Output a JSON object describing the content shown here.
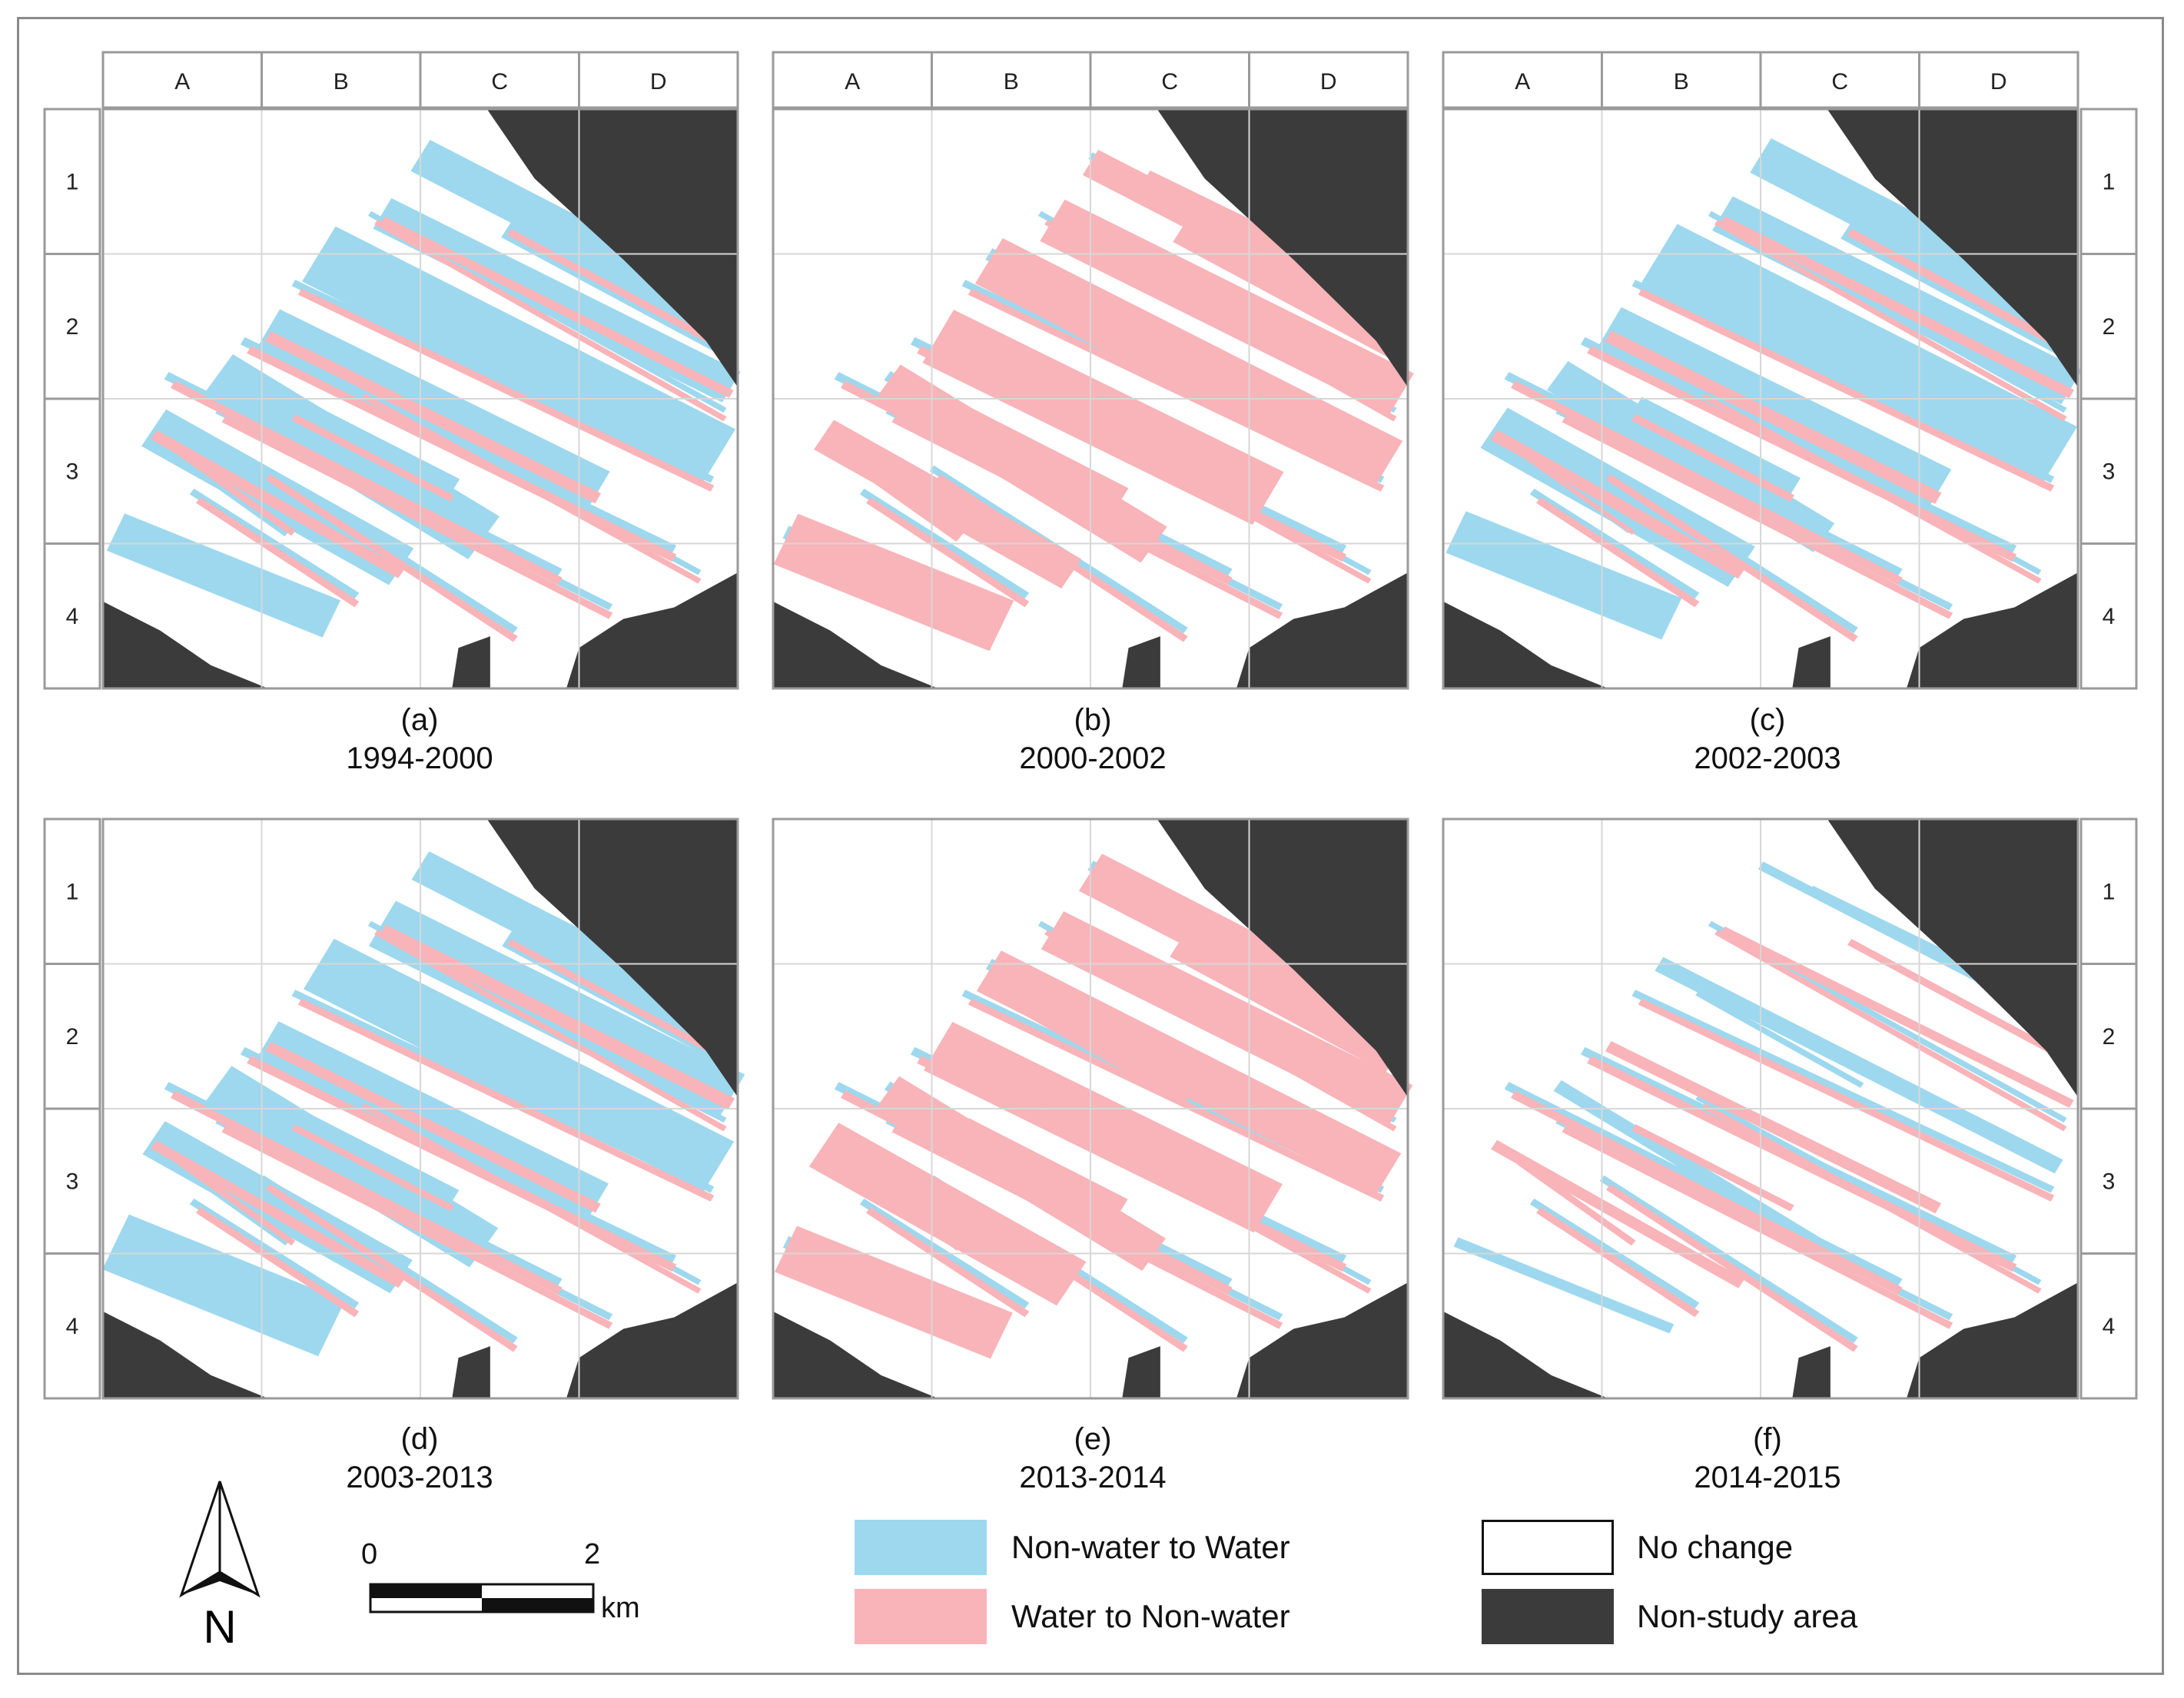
{
  "colors": {
    "gain": "#9dd8ee",
    "loss": "#f8b4b8",
    "nostudy": "#3b3b3b",
    "grid": "#d7d7d7",
    "frame": "#9a9a9a"
  },
  "grid": {
    "columns": [
      "A",
      "B",
      "C",
      "D"
    ],
    "rows": [
      "1",
      "2",
      "3",
      "4"
    ]
  },
  "panels": [
    {
      "letter": "(a)",
      "period": "1994-2000",
      "dominant": "gain"
    },
    {
      "letter": "(b)",
      "period": "2000-2002",
      "dominant": "loss"
    },
    {
      "letter": "(c)",
      "period": "2002-2003",
      "dominant": "gain"
    },
    {
      "letter": "(d)",
      "period": "2003-2013",
      "dominant": "gain"
    },
    {
      "letter": "(e)",
      "period": "2013-2014",
      "dominant": "loss"
    },
    {
      "letter": "(f)",
      "period": "2014-2015",
      "dominant": "mixed"
    }
  ],
  "legend": {
    "gain_label": "Non-water to Water",
    "loss_label": "Water to Non-water",
    "nochange_label": "No change",
    "nostudy_label": "Non-study area"
  },
  "scalebar": {
    "start": "0",
    "end": "2",
    "unit": "km"
  },
  "north_arrow": {
    "label": "N",
    "icon": "north-arrow-icon"
  }
}
